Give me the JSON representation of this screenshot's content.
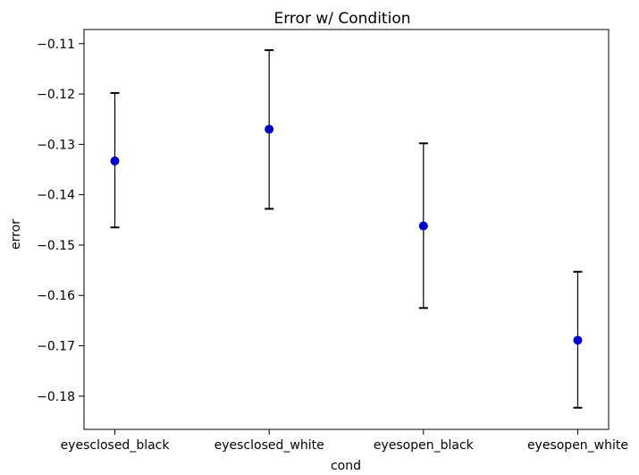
{
  "chart_data": {
    "type": "scatter",
    "title": "Error w/ Condition",
    "xlabel": "cond",
    "ylabel": "error",
    "categories": [
      "eyesclosed_black",
      "eyesclosed_white",
      "eyesopen_black",
      "eyesopen_white"
    ],
    "series": [
      {
        "values": [
          -0.1333,
          -0.127,
          -0.1462,
          -0.1689
        ],
        "error_low": [
          -0.1465,
          -0.1428,
          -0.1625,
          -0.1823
        ],
        "error_high": [
          -0.1198,
          -0.1113,
          -0.1298,
          -0.1553
        ]
      }
    ],
    "yticks": [
      -0.18,
      -0.17,
      -0.16,
      -0.15,
      -0.14,
      -0.13,
      -0.12,
      -0.11
    ],
    "ytick_labels": [
      "−0.18",
      "−0.17",
      "−0.16",
      "−0.15",
      "−0.14",
      "−0.13",
      "−0.12",
      "−0.11"
    ],
    "ylim": [
      -0.1866,
      -0.1072
    ],
    "grid": false,
    "colors": {
      "marker": "#0000cc",
      "errorbar": "#000000",
      "axes": "#000000",
      "background": "#ffffff"
    }
  }
}
